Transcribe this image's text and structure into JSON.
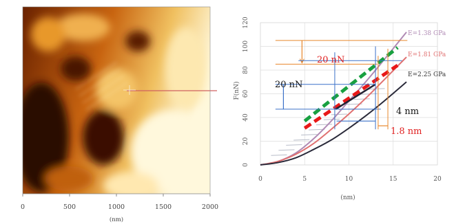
{
  "afm_image": {
    "x_ticks": [
      "0",
      "500",
      "1000",
      "1500",
      "2000"
    ],
    "x_unit": "(nm)",
    "palette": {
      "dark": "#2a0800",
      "mid": "#c86410",
      "light": "#fff8dc"
    },
    "scan_line_color": "#d06060"
  },
  "chart_data": {
    "type": "line",
    "xlabel": "(nm)",
    "ylabel": "F(nN)",
    "xlim": [
      0,
      20
    ],
    "ylim": [
      0,
      120
    ],
    "x_ticks": [
      "0",
      "5",
      "10",
      "15",
      "20"
    ],
    "y_ticks": [
      "0",
      "20",
      "40",
      "60",
      "80",
      "100",
      "120"
    ],
    "grid": true,
    "series": [
      {
        "name": "E=1.38 GPa",
        "color": "#b08ab4",
        "x": [
          0,
          2,
          4,
          6,
          8,
          10,
          12,
          14,
          16.5
        ],
        "y": [
          0,
          3,
          10,
          22,
          37,
          54,
          71,
          89,
          112
        ]
      },
      {
        "name": "E=1.81 GPa",
        "color": "#e07070",
        "x": [
          0,
          2,
          4,
          6,
          8,
          10,
          12,
          14,
          16.5
        ],
        "y": [
          0,
          3,
          9,
          18,
          30,
          43,
          57,
          72,
          91
        ]
      },
      {
        "name": "E=2.25 GPa",
        "color": "#2a2a3a",
        "x": [
          0,
          2,
          4,
          6,
          8,
          10,
          12,
          14,
          16.5
        ],
        "y": [
          0,
          2,
          6,
          13,
          21,
          31,
          42,
          54,
          70
        ]
      }
    ],
    "fit_lines": [
      {
        "color": "#18a040",
        "x": [
          5,
          15.5
        ],
        "y": [
          37,
          99
        ]
      },
      {
        "color": "#e81818",
        "x": [
          5,
          15.5
        ],
        "y": [
          31,
          84
        ]
      },
      {
        "color": "#222233",
        "x": [
          8.5,
          13
        ],
        "y": [
          47,
          68
        ]
      }
    ],
    "annotations": {
      "top_force": "20 nN",
      "mid_force": "20 nN",
      "disp_black": "4 nm",
      "disp_red": "1.8 nm"
    },
    "annotation_colors": {
      "orange": "#e8862a",
      "blue": "#3a70c8",
      "red": "#e02020",
      "black": "#111111"
    }
  }
}
